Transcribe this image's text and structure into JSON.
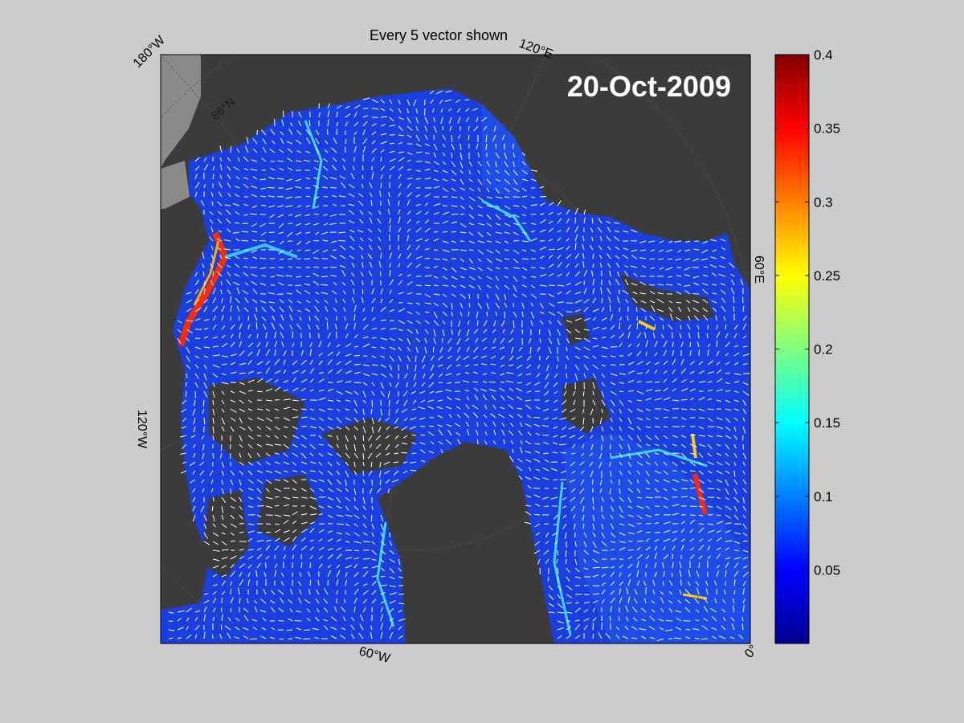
{
  "title": "Every 5 vector shown",
  "date": "20-Oct-2009",
  "corner_labels": {
    "top_left": "180°W",
    "top_center": "120°E",
    "right": "60°E",
    "left": "120°W",
    "bottom": "60°W",
    "bottom_right": "0°"
  },
  "latitude_label": "86°N",
  "colorbar": {
    "colormap": "jet",
    "min": 0,
    "max": 0.4,
    "ticks": [
      "0.4",
      "0.35",
      "0.3",
      "0.25",
      "0.2",
      "0.15",
      "0.1",
      "0.05"
    ]
  },
  "colors": {
    "background": "#cccccc",
    "land": "#3b3b3b",
    "ice_base": "#1a3fe0",
    "vector": "#ffffff"
  }
}
